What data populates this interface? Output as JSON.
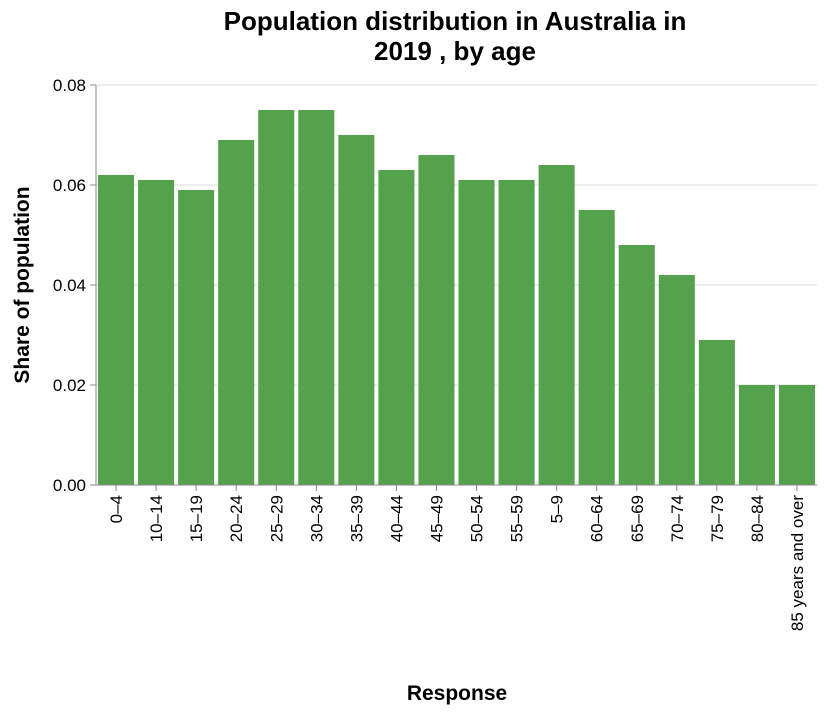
{
  "chart_data": {
    "type": "bar",
    "title_lines": [
      "Population distribution in Australia in",
      "2019 , by age"
    ],
    "xlabel": "Response",
    "ylabel": "Share of population",
    "ylim": [
      0,
      0.08
    ],
    "yticks": [
      "0.00",
      "0.02",
      "0.04",
      "0.06",
      "0.08"
    ],
    "grid": true,
    "categories": [
      "0-4",
      "10-14",
      "15-19",
      "20-24",
      "25-29",
      "30-34",
      "35-39",
      "40-44",
      "45-49",
      "50-54",
      "55-59",
      "5-9",
      "60-64",
      "65-69",
      "70-74",
      "75-79",
      "80-84",
      "85 years and over"
    ],
    "values": [
      0.062,
      0.061,
      0.059,
      0.069,
      0.075,
      0.075,
      0.07,
      0.063,
      0.066,
      0.061,
      0.061,
      0.064,
      0.055,
      0.048,
      0.042,
      0.029,
      0.02,
      0.02
    ],
    "bar_color": "#55a24d"
  }
}
